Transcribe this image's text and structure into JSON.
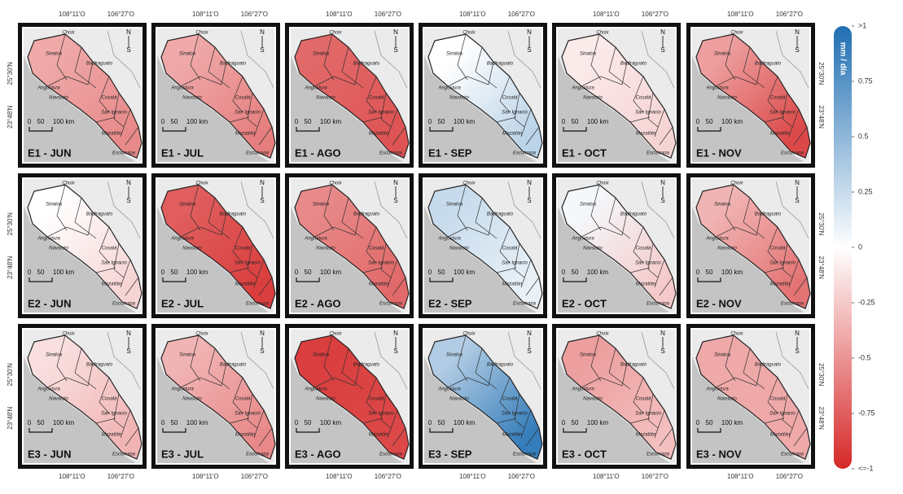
{
  "map": {
    "lon_labels": [
      "108°11'O",
      "106°27'O"
    ],
    "lat_labels": [
      "25°30'N",
      "23°48'N"
    ],
    "places": [
      "Choix",
      "Sinaloa",
      "Badiraguato",
      "Angostura",
      "Navolato",
      "Cosalá",
      "San Ignacio",
      "Mazatlán",
      "Escuinapa"
    ],
    "scale_labels": [
      "0",
      "50",
      "100 km"
    ],
    "compass": [
      "N",
      "S"
    ],
    "panels": [
      {
        "label": "E1 - JUN",
        "values": [
          -0.4,
          -0.55
        ]
      },
      {
        "label": "E1 - JUL",
        "values": [
          -0.4,
          -0.6
        ]
      },
      {
        "label": "E1 - AGO",
        "values": [
          -0.7,
          -0.8
        ]
      },
      {
        "label": "E1 - SEP",
        "values": [
          0,
          0.3
        ]
      },
      {
        "label": "E1 - OCT",
        "values": [
          -0.1,
          -0.2
        ]
      },
      {
        "label": "E1 - NOV",
        "values": [
          -0.45,
          -0.85
        ]
      },
      {
        "label": "E2 - JUN",
        "values": [
          0,
          -0.2
        ]
      },
      {
        "label": "E2 - JUL",
        "values": [
          -0.75,
          -0.9
        ]
      },
      {
        "label": "E2 - AGO",
        "values": [
          -0.55,
          -0.7
        ]
      },
      {
        "label": "E2 - SEP",
        "values": [
          0.25,
          0.1
        ]
      },
      {
        "label": "E2 - OCT",
        "values": [
          0.05,
          -0.25
        ]
      },
      {
        "label": "E2 - NOV",
        "values": [
          -0.35,
          -0.65
        ]
      },
      {
        "label": "E3 - JUN",
        "values": [
          -0.15,
          -0.35
        ]
      },
      {
        "label": "E3 - JUL",
        "values": [
          -0.35,
          -0.55
        ]
      },
      {
        "label": "E3 - AGO",
        "values": [
          -0.9,
          -0.85
        ]
      },
      {
        "label": "E3 - SEP",
        "values": [
          0.35,
          0.9
        ]
      },
      {
        "label": "E3 - OCT",
        "values": [
          -0.45,
          -0.3
        ]
      },
      {
        "label": "E3 - NOV",
        "values": [
          -0.4,
          -0.4
        ]
      }
    ],
    "colorbar": {
      "title": "mm / día",
      "lim": [
        -1,
        1
      ],
      "ticks": [
        {
          "value": 1,
          "label": ">1"
        },
        0.75,
        0.5,
        0.25,
        0,
        -0.25,
        -0.5,
        -0.75,
        {
          "value": -1,
          "label": "<=-1"
        }
      ]
    }
  }
}
